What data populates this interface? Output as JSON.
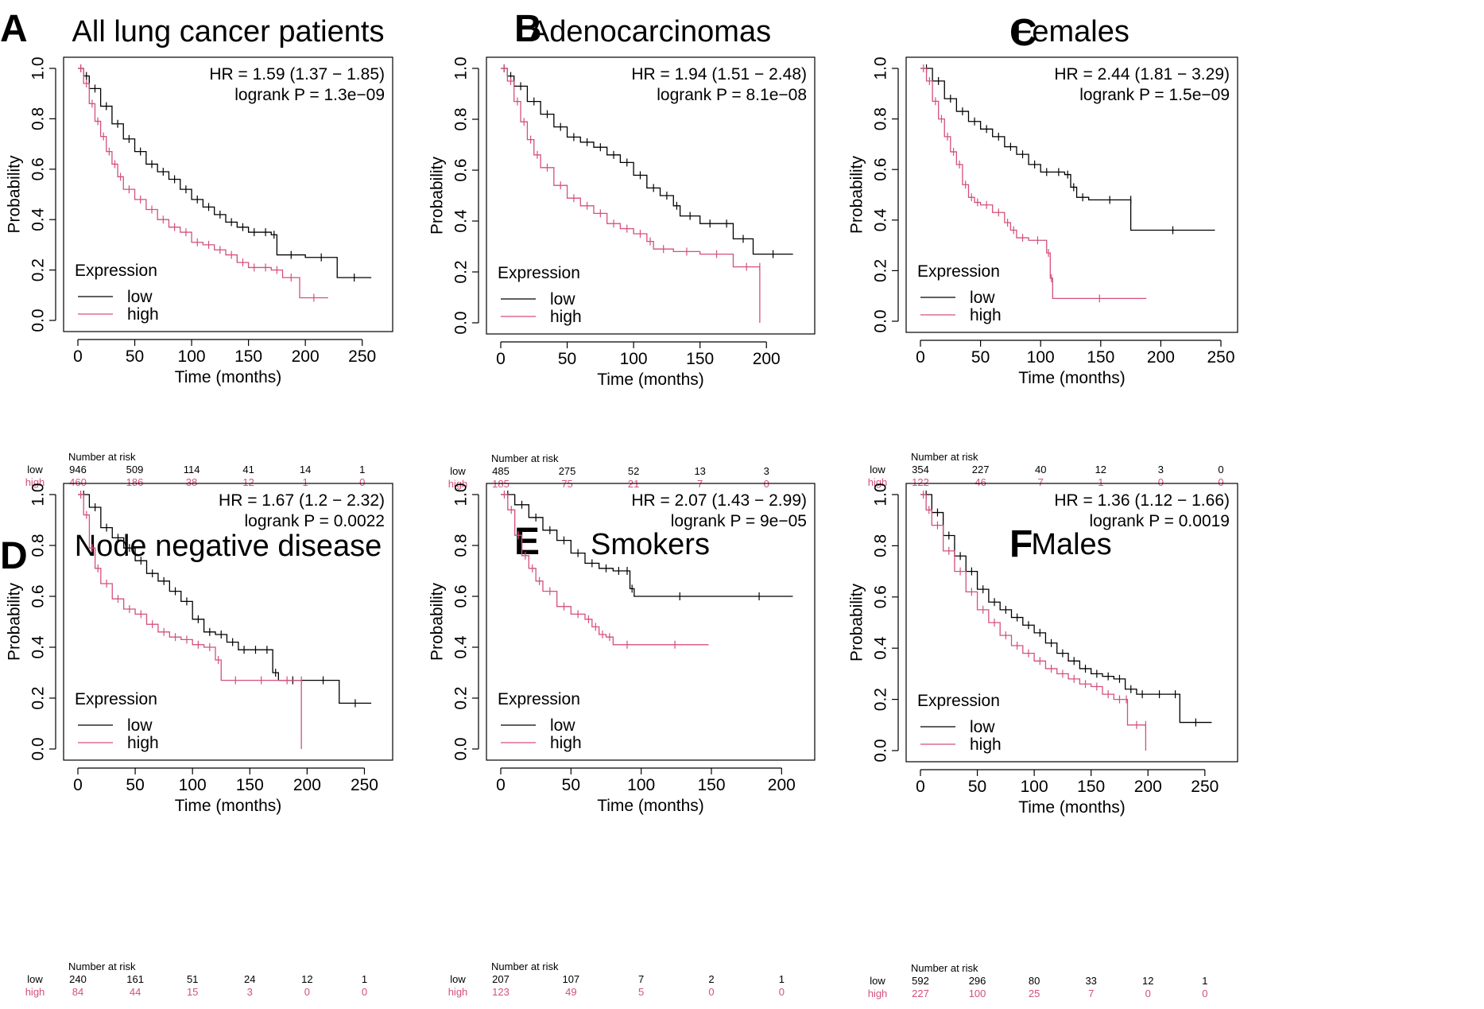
{
  "colors": {
    "low": "#000000",
    "high": "#d45079"
  },
  "shared": {
    "xlabel": "Time (months)",
    "ylabel": "Probability",
    "legend_title": "Expression",
    "legend_low": "low",
    "legend_high": "high",
    "risk_title": "Number at risk",
    "risk_low_label": "low",
    "risk_high_label": "high"
  },
  "chart_data": [
    {
      "letter": "A",
      "type": "line",
      "title": "All lung cancer patients",
      "hr_text": "HR = 1.59 (1.37 − 1.85)",
      "p_text": "logrank P = 1.3e−09",
      "xlim": [
        0,
        260
      ],
      "ylim": [
        0,
        1
      ],
      "xticks": [
        0,
        50,
        100,
        150,
        200,
        250
      ],
      "yticks": [
        0,
        0.2,
        0.4,
        0.6,
        0.8,
        1.0
      ],
      "tick_labels_x": [
        "0",
        "50",
        "100",
        "150",
        "200",
        "250"
      ],
      "tick_labels_y": [
        "0.0",
        "0.2",
        "0.4",
        "0.6",
        "0.8",
        "1.0"
      ],
      "series": [
        {
          "name": "low",
          "x": [
            0,
            5,
            10,
            20,
            30,
            40,
            50,
            60,
            70,
            80,
            90,
            100,
            110,
            120,
            130,
            140,
            150,
            160,
            170,
            175,
            200,
            228,
            258
          ],
          "y": [
            1.0,
            0.97,
            0.92,
            0.85,
            0.78,
            0.72,
            0.67,
            0.62,
            0.59,
            0.56,
            0.52,
            0.48,
            0.45,
            0.42,
            0.39,
            0.37,
            0.35,
            0.35,
            0.34,
            0.26,
            0.25,
            0.17,
            0.17
          ]
        },
        {
          "name": "high",
          "x": [
            0,
            5,
            10,
            15,
            20,
            25,
            30,
            35,
            40,
            50,
            60,
            70,
            80,
            90,
            100,
            110,
            120,
            130,
            140,
            150,
            160,
            170,
            180,
            195,
            220
          ],
          "y": [
            1.0,
            0.94,
            0.86,
            0.79,
            0.73,
            0.67,
            0.62,
            0.57,
            0.52,
            0.48,
            0.44,
            0.4,
            0.37,
            0.35,
            0.31,
            0.3,
            0.28,
            0.26,
            0.23,
            0.21,
            0.21,
            0.2,
            0.17,
            0.09,
            0.09
          ]
        }
      ],
      "risk_times": [
        "0",
        "50",
        "100",
        "150",
        "200",
        "250"
      ],
      "risk_low": [
        "946",
        "509",
        "114",
        "41",
        "14",
        "1"
      ],
      "risk_high": [
        "460",
        "186",
        "38",
        "12",
        "1",
        "0"
      ]
    },
    {
      "letter": "B",
      "type": "line",
      "title": "Adenocarcinomas",
      "hr_text": "HR = 1.94 (1.51 − 2.48)",
      "p_text": "logrank P = 8.1e−08",
      "xlim": [
        0,
        222
      ],
      "ylim": [
        0,
        1
      ],
      "xticks": [
        0,
        50,
        100,
        150,
        200
      ],
      "yticks": [
        0,
        0.2,
        0.4,
        0.6,
        0.8,
        1.0
      ],
      "tick_labels_x": [
        "0",
        "50",
        "100",
        "150",
        "200"
      ],
      "tick_labels_y": [
        "0.0",
        "0.2",
        "0.4",
        "0.6",
        "0.8",
        "1.0"
      ],
      "series": [
        {
          "name": "low",
          "x": [
            0,
            5,
            10,
            20,
            30,
            40,
            50,
            60,
            70,
            80,
            90,
            100,
            110,
            120,
            130,
            135,
            150,
            165,
            175,
            190,
            220
          ],
          "y": [
            1.0,
            0.97,
            0.93,
            0.87,
            0.82,
            0.77,
            0.73,
            0.71,
            0.69,
            0.66,
            0.63,
            0.58,
            0.53,
            0.5,
            0.46,
            0.42,
            0.39,
            0.39,
            0.33,
            0.27,
            0.27
          ]
        },
        {
          "name": "high",
          "x": [
            0,
            5,
            10,
            15,
            20,
            25,
            30,
            40,
            50,
            60,
            70,
            80,
            90,
            100,
            110,
            115,
            130,
            150,
            175,
            195,
            195
          ],
          "y": [
            1.0,
            0.95,
            0.87,
            0.79,
            0.72,
            0.66,
            0.61,
            0.54,
            0.49,
            0.46,
            0.43,
            0.39,
            0.37,
            0.35,
            0.32,
            0.29,
            0.28,
            0.27,
            0.22,
            0.22,
            0.0
          ]
        }
      ],
      "risk_times": [
        "0",
        "50",
        "100",
        "150",
        "200"
      ],
      "risk_low": [
        "485",
        "275",
        "52",
        "13",
        "3"
      ],
      "risk_high": [
        "185",
        "75",
        "21",
        "7",
        "0"
      ]
    },
    {
      "letter": "C",
      "type": "line",
      "title": "Females",
      "hr_text": "HR = 2.44 (1.81 − 3.29)",
      "p_text": "logrank P = 1.5e−09",
      "xlim": [
        0,
        248
      ],
      "ylim": [
        0,
        1
      ],
      "xticks": [
        0,
        50,
        100,
        150,
        200,
        250
      ],
      "yticks": [
        0,
        0.2,
        0.4,
        0.6,
        0.8,
        1.0
      ],
      "tick_labels_x": [
        "0",
        "50",
        "100",
        "150",
        "200",
        "250"
      ],
      "tick_labels_y": [
        "0.0",
        "0.2",
        "0.4",
        "0.6",
        "0.8",
        "1.0"
      ],
      "series": [
        {
          "name": "low",
          "x": [
            0,
            10,
            20,
            30,
            40,
            50,
            60,
            70,
            80,
            90,
            100,
            110,
            120,
            125,
            130,
            140,
            175,
            175,
            245
          ],
          "y": [
            1.0,
            0.95,
            0.88,
            0.83,
            0.79,
            0.76,
            0.73,
            0.69,
            0.66,
            0.62,
            0.59,
            0.59,
            0.58,
            0.53,
            0.49,
            0.48,
            0.48,
            0.36,
            0.36
          ]
        },
        {
          "name": "high",
          "x": [
            0,
            5,
            10,
            15,
            20,
            25,
            30,
            35,
            40,
            45,
            50,
            60,
            70,
            75,
            80,
            90,
            105,
            108,
            110,
            188
          ],
          "y": [
            1.0,
            0.95,
            0.87,
            0.8,
            0.73,
            0.67,
            0.62,
            0.54,
            0.49,
            0.47,
            0.46,
            0.43,
            0.39,
            0.36,
            0.33,
            0.32,
            0.27,
            0.17,
            0.09,
            0.09
          ]
        }
      ],
      "risk_times": [
        "0",
        "50",
        "100",
        "150",
        "200",
        "250"
      ],
      "risk_low": [
        "354",
        "227",
        "40",
        "12",
        "3",
        "0"
      ],
      "risk_high": [
        "122",
        "46",
        "7",
        "1",
        "0",
        "0"
      ]
    },
    {
      "letter": "D",
      "type": "line",
      "title": "Node negative disease",
      "hr_text": "HR = 1.67 (1.2 − 2.32)",
      "p_text": "logrank P = 0.0022",
      "xlim": [
        0,
        258
      ],
      "ylim": [
        0,
        1
      ],
      "xticks": [
        0,
        50,
        100,
        150,
        200,
        250
      ],
      "yticks": [
        0,
        0.2,
        0.4,
        0.6,
        0.8,
        1.0
      ],
      "tick_labels_x": [
        "0",
        "50",
        "100",
        "150",
        "200",
        "250"
      ],
      "tick_labels_y": [
        "0.0",
        "0.2",
        "0.4",
        "0.6",
        "0.8",
        "1.0"
      ],
      "series": [
        {
          "name": "low",
          "x": [
            0,
            10,
            20,
            30,
            40,
            50,
            60,
            70,
            80,
            90,
            100,
            110,
            120,
            130,
            140,
            150,
            160,
            170,
            175,
            200,
            228,
            256
          ],
          "y": [
            1.0,
            0.95,
            0.87,
            0.83,
            0.79,
            0.74,
            0.69,
            0.66,
            0.62,
            0.58,
            0.51,
            0.46,
            0.45,
            0.42,
            0.39,
            0.39,
            0.39,
            0.3,
            0.27,
            0.27,
            0.18,
            0.18
          ]
        },
        {
          "name": "high",
          "x": [
            0,
            5,
            10,
            15,
            20,
            30,
            40,
            50,
            60,
            70,
            80,
            90,
            100,
            110,
            120,
            125,
            150,
            170,
            195,
            195
          ],
          "y": [
            1.0,
            0.92,
            0.79,
            0.71,
            0.65,
            0.59,
            0.55,
            0.53,
            0.49,
            0.46,
            0.44,
            0.43,
            0.41,
            0.4,
            0.35,
            0.27,
            0.27,
            0.27,
            0.27,
            0.0
          ]
        }
      ],
      "risk_times": [
        "0",
        "50",
        "100",
        "150",
        "200",
        "250"
      ],
      "risk_low": [
        "240",
        "161",
        "51",
        "24",
        "12",
        "1"
      ],
      "risk_high": [
        "84",
        "44",
        "15",
        "3",
        "0",
        "0"
      ]
    },
    {
      "letter": "E",
      "type": "line",
      "title": "Smokers",
      "hr_text": "HR = 2.07 (1.43 − 2.99)",
      "p_text": "logrank P = 9e−05",
      "xlim": [
        0,
        210
      ],
      "ylim": [
        0,
        1
      ],
      "xticks": [
        0,
        50,
        100,
        150,
        200
      ],
      "yticks": [
        0,
        0.2,
        0.4,
        0.6,
        0.8,
        1.0
      ],
      "tick_labels_x": [
        "0",
        "50",
        "100",
        "150",
        "200"
      ],
      "tick_labels_y": [
        "0.0",
        "0.2",
        "0.4",
        "0.6",
        "0.8",
        "1.0"
      ],
      "series": [
        {
          "name": "low",
          "x": [
            0,
            10,
            20,
            30,
            40,
            50,
            60,
            70,
            80,
            88,
            92,
            95,
            160,
            208
          ],
          "y": [
            1.0,
            0.96,
            0.91,
            0.86,
            0.82,
            0.77,
            0.73,
            0.71,
            0.7,
            0.7,
            0.63,
            0.6,
            0.6,
            0.6
          ]
        },
        {
          "name": "high",
          "x": [
            0,
            5,
            10,
            15,
            20,
            25,
            30,
            40,
            50,
            60,
            65,
            70,
            75,
            80,
            100,
            148
          ],
          "y": [
            1.0,
            0.94,
            0.84,
            0.76,
            0.71,
            0.66,
            0.62,
            0.56,
            0.53,
            0.51,
            0.48,
            0.45,
            0.44,
            0.41,
            0.41,
            0.41
          ]
        }
      ],
      "risk_times": [
        "0",
        "50",
        "100",
        "150",
        "200"
      ],
      "risk_low": [
        "207",
        "107",
        "7",
        "2",
        "1"
      ],
      "risk_high": [
        "123",
        "49",
        "5",
        "0",
        "0"
      ]
    },
    {
      "letter": "F",
      "type": "line",
      "title": "Males",
      "hr_text": "HR = 1.36 (1.12 − 1.66)",
      "p_text": "logrank P = 0.0019",
      "xlim": [
        0,
        262
      ],
      "ylim": [
        0,
        1
      ],
      "xticks": [
        0,
        50,
        100,
        150,
        200,
        250
      ],
      "yticks": [
        0,
        0.2,
        0.4,
        0.6,
        0.8,
        1.0
      ],
      "tick_labels_x": [
        "0",
        "50",
        "100",
        "150",
        "200",
        "250"
      ],
      "tick_labels_y": [
        "0.0",
        "0.2",
        "0.4",
        "0.6",
        "0.8",
        "1.0"
      ],
      "series": [
        {
          "name": "low",
          "x": [
            0,
            10,
            20,
            30,
            40,
            50,
            60,
            70,
            80,
            90,
            100,
            110,
            120,
            130,
            140,
            150,
            160,
            170,
            180,
            190,
            200,
            220,
            228,
            256
          ],
          "y": [
            1.0,
            0.93,
            0.84,
            0.76,
            0.7,
            0.63,
            0.58,
            0.55,
            0.52,
            0.49,
            0.46,
            0.42,
            0.38,
            0.35,
            0.32,
            0.3,
            0.29,
            0.28,
            0.24,
            0.22,
            0.22,
            0.22,
            0.11,
            0.11
          ]
        },
        {
          "name": "high",
          "x": [
            0,
            5,
            10,
            20,
            30,
            40,
            50,
            60,
            70,
            80,
            90,
            100,
            110,
            120,
            130,
            140,
            150,
            160,
            170,
            180,
            182,
            198,
            198
          ],
          "y": [
            1.0,
            0.94,
            0.88,
            0.78,
            0.7,
            0.62,
            0.55,
            0.5,
            0.45,
            0.41,
            0.38,
            0.35,
            0.32,
            0.3,
            0.28,
            0.26,
            0.25,
            0.22,
            0.2,
            0.2,
            0.1,
            0.1,
            0.0
          ]
        }
      ],
      "risk_times": [
        "0",
        "50",
        "100",
        "150",
        "200",
        "250"
      ],
      "risk_low": [
        "592",
        "296",
        "80",
        "33",
        "12",
        "1"
      ],
      "risk_high": [
        "227",
        "100",
        "25",
        "7",
        "0",
        "0"
      ]
    }
  ]
}
